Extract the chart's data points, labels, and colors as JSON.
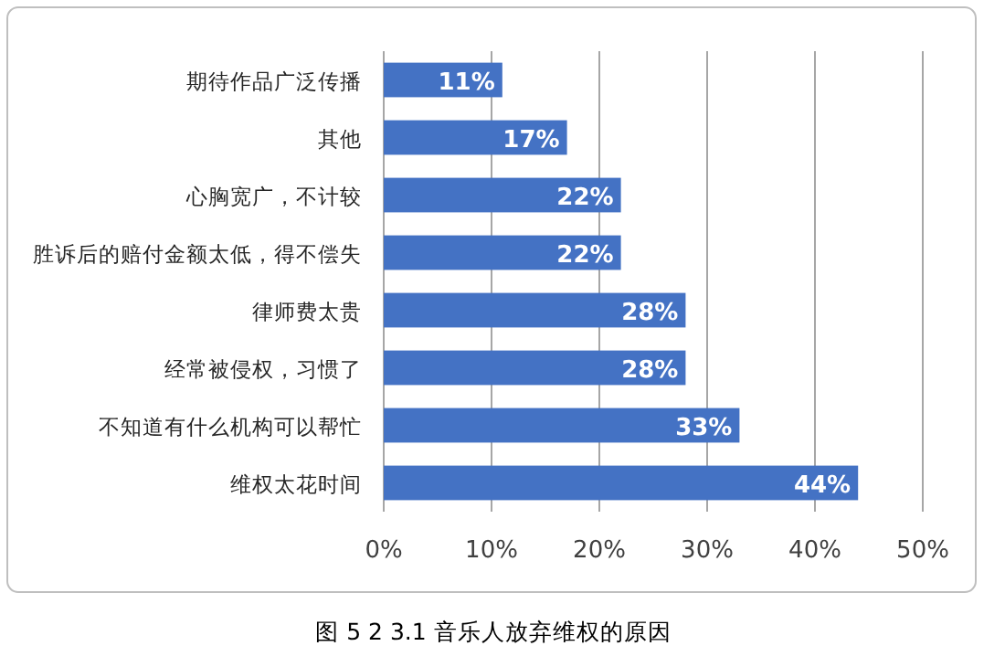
{
  "chart_data": {
    "type": "bar",
    "orientation": "horizontal",
    "categories": [
      "期待作品广泛传播",
      "其他",
      "心胸宽广，不计较",
      "胜诉后的赔付金额太低，得不偿失",
      "律师费太贵",
      "经常被侵权，习惯了",
      "不知道有什么机构可以帮忙",
      "维权太花时间"
    ],
    "values": [
      11,
      17,
      22,
      22,
      28,
      28,
      33,
      44
    ],
    "value_labels": [
      "11%",
      "17%",
      "22%",
      "22%",
      "28%",
      "28%",
      "33%",
      "44%"
    ],
    "color": "#4472c4",
    "xlim": [
      0,
      50
    ],
    "xticks": [
      {
        "value": 0,
        "label": "0%"
      },
      {
        "value": 10,
        "label": "10%"
      },
      {
        "value": 20,
        "label": "20%"
      },
      {
        "value": 30,
        "label": "30%"
      },
      {
        "value": 40,
        "label": "40%"
      },
      {
        "value": 50,
        "label": "50%"
      }
    ],
    "grid": "x",
    "annotations": [
      "图 5 2 3.1  音乐人放弃维权的原因"
    ]
  }
}
